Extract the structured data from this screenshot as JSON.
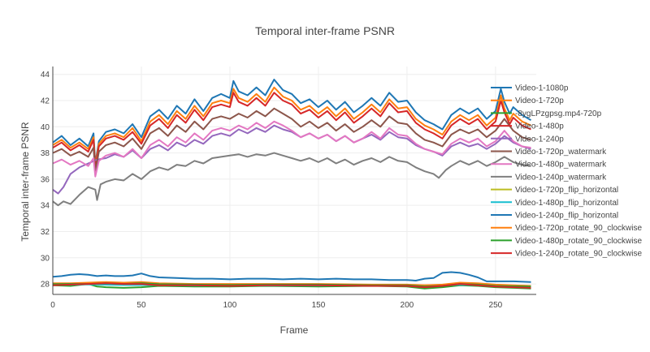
{
  "chart_data": {
    "type": "line",
    "title": "Temporal inter-frame PSNR",
    "xlabel": "Frame",
    "ylabel": "Temporal inter-frame PSNR",
    "xlim": [
      0,
      273
    ],
    "ylim": [
      27.2,
      44.6
    ],
    "xticks": [
      0,
      50,
      100,
      150,
      200,
      250
    ],
    "yticks": [
      28,
      30,
      32,
      34,
      36,
      38,
      40,
      42,
      44
    ],
    "grid": true,
    "legend_position": "right",
    "series": [
      {
        "name": "Video-1-1080p",
        "color": "#1f77b4",
        "x": [
          0,
          5,
          10,
          15,
          20,
          23,
          24,
          26,
          30,
          35,
          40,
          45,
          50,
          55,
          60,
          65,
          70,
          75,
          80,
          85,
          90,
          95,
          100,
          102,
          105,
          110,
          115,
          120,
          125,
          130,
          135,
          140,
          145,
          150,
          155,
          160,
          165,
          170,
          175,
          180,
          185,
          190,
          195,
          200,
          205,
          210,
          215,
          220,
          225,
          230,
          235,
          240,
          245,
          250,
          253,
          255,
          258,
          260,
          265,
          270
        ],
        "y": [
          38.8,
          39.3,
          38.6,
          39.1,
          38.5,
          39.5,
          37.2,
          38.9,
          39.6,
          39.8,
          39.5,
          40.2,
          39.2,
          40.8,
          41.3,
          40.6,
          41.6,
          41.0,
          42.1,
          41.2,
          42.2,
          42.5,
          42.2,
          43.5,
          42.7,
          42.4,
          43.0,
          42.4,
          43.6,
          42.8,
          42.5,
          41.8,
          42.1,
          41.5,
          42.0,
          41.3,
          41.9,
          41.1,
          41.6,
          42.2,
          41.6,
          42.6,
          41.9,
          42.0,
          41.1,
          40.5,
          40.2,
          39.8,
          40.9,
          41.4,
          41.0,
          41.4,
          40.6,
          41.2,
          42.9,
          41.9,
          41.0,
          41.5,
          40.9,
          40.5
        ]
      },
      {
        "name": "Video-1-720p",
        "color": "#ff7f0e",
        "x": [
          0,
          5,
          10,
          15,
          20,
          23,
          24,
          26,
          30,
          35,
          40,
          45,
          50,
          55,
          60,
          65,
          70,
          75,
          80,
          85,
          90,
          95,
          100,
          102,
          105,
          110,
          115,
          120,
          125,
          130,
          135,
          140,
          145,
          150,
          155,
          160,
          165,
          170,
          175,
          180,
          185,
          190,
          195,
          200,
          205,
          210,
          215,
          220,
          225,
          230,
          235,
          240,
          245,
          250,
          253,
          255,
          258,
          260,
          265,
          270
        ],
        "y": [
          38.6,
          39.0,
          38.4,
          38.8,
          38.3,
          39.2,
          37.0,
          38.7,
          39.3,
          39.5,
          39.2,
          39.9,
          38.9,
          40.4,
          40.9,
          40.2,
          41.2,
          40.6,
          41.6,
          40.8,
          41.8,
          42.0,
          41.8,
          42.9,
          42.2,
          41.9,
          42.5,
          41.9,
          43.0,
          42.3,
          42.0,
          41.3,
          41.6,
          41.0,
          41.5,
          40.8,
          41.4,
          40.6,
          41.1,
          41.7,
          41.1,
          42.1,
          41.4,
          41.5,
          40.6,
          40.1,
          39.8,
          39.4,
          40.4,
          40.9,
          40.5,
          40.9,
          40.1,
          40.7,
          42.4,
          41.4,
          40.5,
          41.0,
          40.4,
          40.1
        ]
      },
      {
        "name": "-8ygLPzgpsg.mp4-720p",
        "color": "#2ca02c",
        "x": [
          0,
          10,
          20,
          25,
          30,
          40,
          50,
          60,
          80,
          100,
          120,
          150,
          180,
          200,
          210,
          220,
          230,
          240,
          250,
          260,
          270
        ],
        "y": [
          27.9,
          27.85,
          28.0,
          27.8,
          27.75,
          27.7,
          27.75,
          27.85,
          27.8,
          27.8,
          27.85,
          27.8,
          27.85,
          27.8,
          27.65,
          27.75,
          27.9,
          27.85,
          27.75,
          27.7,
          27.65
        ]
      },
      {
        "name": "Video-1-480p",
        "color": "#d62728",
        "x": [
          0,
          5,
          10,
          15,
          20,
          23,
          24,
          26,
          30,
          35,
          40,
          45,
          50,
          55,
          60,
          65,
          70,
          75,
          80,
          85,
          90,
          95,
          100,
          102,
          105,
          110,
          115,
          120,
          125,
          130,
          135,
          140,
          145,
          150,
          155,
          160,
          165,
          170,
          175,
          180,
          185,
          190,
          195,
          200,
          205,
          210,
          215,
          220,
          225,
          230,
          235,
          240,
          245,
          250,
          253,
          255,
          258,
          260,
          265,
          270
        ],
        "y": [
          38.4,
          38.8,
          38.2,
          38.6,
          38.1,
          39.0,
          36.8,
          38.5,
          39.1,
          39.3,
          39.0,
          39.6,
          38.7,
          40.1,
          40.6,
          39.9,
          40.9,
          40.3,
          41.3,
          40.5,
          41.5,
          41.7,
          41.5,
          42.6,
          41.9,
          41.6,
          42.2,
          41.6,
          42.6,
          42.0,
          41.7,
          41.0,
          41.3,
          40.7,
          41.2,
          40.5,
          41.1,
          40.3,
          40.8,
          41.4,
          40.8,
          41.8,
          41.1,
          41.2,
          40.3,
          39.8,
          39.5,
          39.1,
          40.1,
          40.6,
          40.2,
          40.6,
          39.8,
          40.4,
          42.0,
          41.1,
          40.2,
          40.7,
          40.1,
          39.8
        ]
      },
      {
        "name": "Video-1-240p",
        "color": "#9467bd",
        "x": [
          0,
          3,
          6,
          10,
          15,
          20,
          25,
          30,
          35,
          40,
          45,
          50,
          55,
          60,
          65,
          70,
          75,
          80,
          85,
          90,
          95,
          100,
          105,
          110,
          115,
          120,
          125,
          130,
          135,
          140,
          145,
          150,
          155,
          160,
          165,
          170,
          175,
          180,
          185,
          190,
          195,
          200,
          205,
          210,
          215,
          220,
          225,
          230,
          235,
          240,
          245,
          250,
          255,
          260,
          265,
          270
        ],
        "y": [
          35.2,
          34.9,
          35.4,
          36.4,
          36.9,
          37.2,
          37.5,
          37.6,
          37.9,
          37.7,
          38.2,
          37.6,
          38.3,
          38.6,
          38.2,
          38.8,
          38.5,
          39.0,
          38.7,
          39.3,
          39.5,
          39.3,
          39.8,
          39.5,
          39.9,
          39.6,
          40.1,
          39.8,
          39.6,
          39.2,
          39.5,
          39.1,
          39.4,
          38.9,
          39.3,
          38.8,
          39.1,
          39.4,
          39.0,
          39.6,
          39.2,
          39.1,
          38.6,
          38.3,
          38.1,
          37.8,
          38.5,
          38.8,
          38.5,
          38.7,
          38.3,
          38.7,
          39.3,
          38.8,
          38.5,
          38.3
        ]
      },
      {
        "name": "Video-1-720p_watermark",
        "color": "#8c564b",
        "x": [
          0,
          5,
          10,
          15,
          20,
          23,
          24,
          26,
          30,
          35,
          40,
          45,
          50,
          55,
          60,
          65,
          70,
          75,
          80,
          85,
          90,
          95,
          100,
          105,
          110,
          115,
          120,
          125,
          130,
          135,
          140,
          145,
          150,
          155,
          160,
          165,
          170,
          175,
          180,
          185,
          190,
          195,
          200,
          205,
          210,
          215,
          220,
          225,
          230,
          235,
          240,
          245,
          250,
          255,
          260,
          265,
          270
        ],
        "y": [
          38.0,
          38.3,
          37.8,
          38.1,
          37.7,
          38.4,
          36.5,
          38.1,
          38.6,
          38.8,
          38.5,
          39.1,
          38.3,
          39.5,
          39.9,
          39.3,
          40.1,
          39.6,
          40.4,
          39.8,
          40.6,
          40.8,
          40.6,
          41.0,
          40.7,
          41.2,
          40.8,
          41.4,
          41.0,
          40.6,
          40.0,
          40.4,
          39.9,
          40.3,
          39.7,
          40.2,
          39.6,
          40.0,
          40.5,
          40.0,
          40.8,
          40.3,
          40.2,
          39.5,
          39.0,
          38.8,
          38.5,
          39.4,
          39.8,
          39.5,
          39.8,
          39.2,
          39.7,
          40.6,
          39.7,
          39.2,
          39.0
        ]
      },
      {
        "name": "Video-1-480p_watermark",
        "color": "#e377c2",
        "x": [
          0,
          5,
          10,
          15,
          20,
          23,
          24,
          26,
          30,
          35,
          40,
          45,
          50,
          55,
          60,
          65,
          70,
          75,
          80,
          85,
          90,
          95,
          100,
          105,
          110,
          115,
          120,
          125,
          130,
          135,
          140,
          145,
          150,
          155,
          160,
          165,
          170,
          175,
          180,
          185,
          190,
          195,
          200,
          205,
          210,
          215,
          220,
          225,
          230,
          235,
          240,
          245,
          250,
          255,
          260,
          265,
          270
        ],
        "y": [
          37.2,
          37.5,
          37.1,
          37.4,
          37.0,
          37.6,
          36.2,
          37.4,
          37.8,
          38.0,
          37.7,
          38.3,
          37.6,
          38.6,
          39.0,
          38.5,
          39.2,
          38.8,
          39.5,
          39.0,
          39.7,
          39.9,
          39.7,
          40.1,
          39.8,
          40.3,
          39.9,
          40.4,
          40.1,
          39.7,
          39.2,
          39.5,
          39.1,
          39.4,
          38.9,
          39.3,
          38.8,
          39.1,
          39.6,
          39.1,
          39.9,
          39.4,
          39.3,
          38.7,
          38.3,
          38.1,
          37.9,
          38.7,
          39.1,
          38.8,
          39.1,
          38.5,
          38.9,
          39.7,
          38.9,
          38.5,
          38.4
        ]
      },
      {
        "name": "Video-1-240p_watermark",
        "color": "#7f7f7f",
        "x": [
          0,
          3,
          6,
          10,
          15,
          20,
          24,
          25,
          27,
          30,
          35,
          40,
          45,
          50,
          55,
          60,
          65,
          70,
          75,
          80,
          85,
          90,
          95,
          100,
          105,
          110,
          115,
          120,
          125,
          130,
          135,
          140,
          145,
          150,
          155,
          160,
          165,
          170,
          175,
          180,
          185,
          190,
          195,
          200,
          205,
          210,
          215,
          218,
          222,
          225,
          230,
          235,
          240,
          245,
          250,
          255,
          260,
          265,
          270
        ],
        "y": [
          34.3,
          34.0,
          34.3,
          34.1,
          34.8,
          35.4,
          35.2,
          34.4,
          35.6,
          35.8,
          36.0,
          35.9,
          36.4,
          36.0,
          36.6,
          36.9,
          36.7,
          37.1,
          37.0,
          37.4,
          37.2,
          37.6,
          37.7,
          37.8,
          37.9,
          37.7,
          37.9,
          37.8,
          38.0,
          37.8,
          37.6,
          37.4,
          37.6,
          37.3,
          37.6,
          37.2,
          37.5,
          37.1,
          37.4,
          37.6,
          37.3,
          37.7,
          37.4,
          37.3,
          36.9,
          36.6,
          36.4,
          36.1,
          36.7,
          37.0,
          37.4,
          37.1,
          37.4,
          37.0,
          37.3,
          37.7,
          37.3,
          37.1,
          37.0
        ]
      },
      {
        "name": "Video-1-720p_flip_horizontal",
        "color": "#bcbd22",
        "x": [
          0,
          20,
          40,
          60,
          80,
          100,
          120,
          150,
          180,
          200,
          215,
          225,
          235,
          250,
          270
        ],
        "y": [
          27.95,
          28.0,
          27.95,
          27.95,
          27.9,
          27.9,
          27.9,
          27.9,
          27.9,
          27.9,
          27.9,
          27.95,
          27.95,
          27.9,
          27.85
        ]
      },
      {
        "name": "Video-1-480p_flip_horizontal",
        "color": "#17becf",
        "x": [
          0,
          20,
          40,
          60,
          80,
          100,
          120,
          150,
          180,
          200,
          215,
          225,
          235,
          250,
          270
        ],
        "y": [
          27.92,
          27.97,
          27.92,
          27.92,
          27.88,
          27.88,
          27.88,
          27.88,
          27.88,
          27.88,
          27.88,
          27.93,
          27.93,
          27.88,
          27.83
        ]
      },
      {
        "name": "Video-1-240p_flip_horizontal",
        "color": "#1f77b4",
        "x": [
          0,
          5,
          10,
          15,
          20,
          25,
          30,
          35,
          40,
          45,
          50,
          55,
          60,
          70,
          80,
          90,
          100,
          110,
          120,
          130,
          140,
          150,
          160,
          170,
          180,
          190,
          200,
          205,
          210,
          215,
          220,
          225,
          230,
          235,
          240,
          245,
          250,
          260,
          270
        ],
        "y": [
          28.55,
          28.6,
          28.7,
          28.75,
          28.7,
          28.6,
          28.65,
          28.6,
          28.6,
          28.65,
          28.8,
          28.6,
          28.5,
          28.45,
          28.4,
          28.4,
          28.35,
          28.4,
          28.4,
          28.35,
          28.4,
          28.35,
          28.4,
          28.35,
          28.35,
          28.3,
          28.3,
          28.25,
          28.4,
          28.45,
          28.85,
          28.9,
          28.85,
          28.7,
          28.5,
          28.2,
          28.2,
          28.2,
          28.15
        ]
      },
      {
        "name": "Video-1-720p_rotate_90_clockwise",
        "color": "#ff7f0e",
        "x": [
          0,
          10,
          20,
          30,
          40,
          50,
          60,
          80,
          100,
          120,
          150,
          180,
          200,
          210,
          220,
          230,
          240,
          250,
          260,
          270
        ],
        "y": [
          28.05,
          28.05,
          28.1,
          28.15,
          28.1,
          28.15,
          28.05,
          28.0,
          28.0,
          28.0,
          28.0,
          27.95,
          27.95,
          27.9,
          27.95,
          28.1,
          28.05,
          27.95,
          27.9,
          27.85
        ]
      },
      {
        "name": "Video-1-480p_rotate_90_clockwise",
        "color": "#2ca02c",
        "x": [
          0,
          10,
          20,
          30,
          40,
          50,
          60,
          80,
          100,
          120,
          150,
          180,
          200,
          210,
          220,
          230,
          240,
          250,
          260,
          270
        ],
        "y": [
          27.98,
          28.0,
          28.0,
          28.05,
          28.0,
          28.05,
          27.98,
          27.95,
          27.92,
          27.95,
          27.95,
          27.9,
          27.9,
          27.8,
          27.85,
          28.0,
          27.95,
          27.85,
          27.82,
          27.8
        ]
      },
      {
        "name": "Video-1-240p_rotate_90_clockwise",
        "color": "#d62728",
        "x": [
          0,
          10,
          20,
          30,
          40,
          50,
          60,
          80,
          100,
          120,
          150,
          180,
          200,
          210,
          220,
          230,
          240,
          250,
          260,
          270
        ],
        "y": [
          27.9,
          27.95,
          28.0,
          28.05,
          28.0,
          28.0,
          27.9,
          27.9,
          27.85,
          27.9,
          27.9,
          27.85,
          27.85,
          27.75,
          27.85,
          28.0,
          27.9,
          27.8,
          27.75,
          27.7
        ]
      }
    ]
  }
}
